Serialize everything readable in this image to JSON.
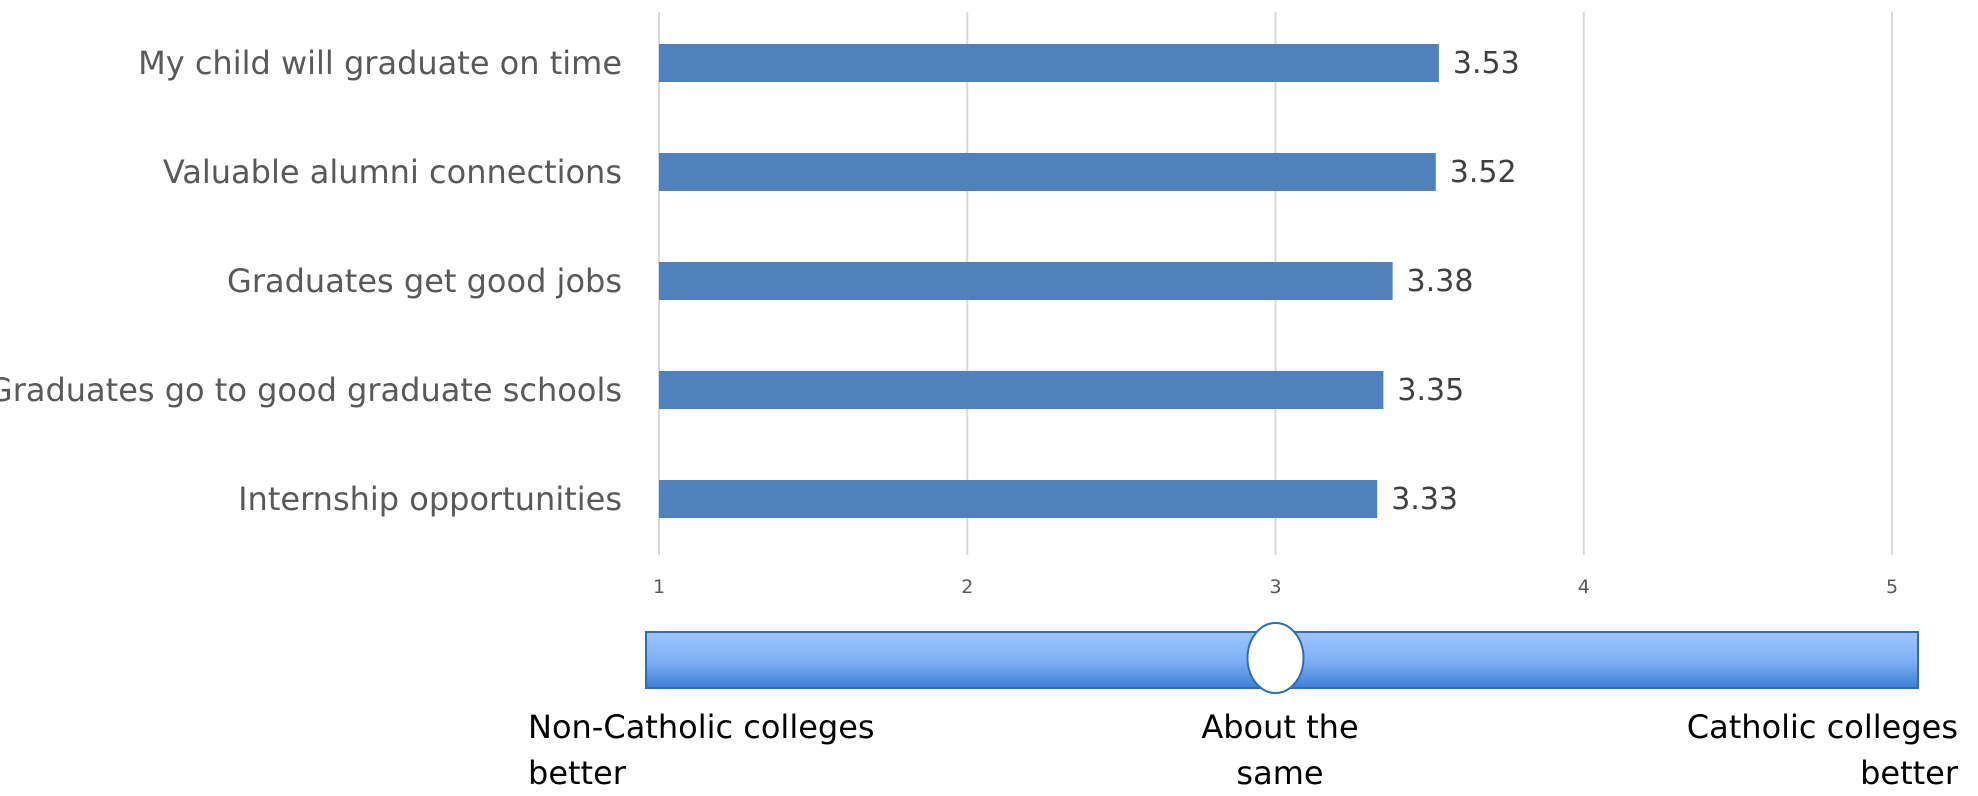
{
  "chart_data": {
    "type": "bar",
    "orientation": "horizontal",
    "categories": [
      "My child will graduate on time",
      "Valuable alumni connections",
      "Graduates get good jobs",
      "Graduates go to good graduate schools",
      "Internship opportunities"
    ],
    "values": [
      3.53,
      3.52,
      3.38,
      3.35,
      3.33
    ],
    "value_labels": [
      "3.53",
      "3.52",
      "3.38",
      "3.35",
      "3.33"
    ],
    "x_ticks": [
      "1",
      "2",
      "3",
      "4",
      "5"
    ],
    "xlim": [
      1,
      5
    ],
    "grid": true,
    "bar_color": "#4f81bd",
    "gridline_color": "#d9d9d9",
    "title": "",
    "xlabel": "",
    "ylabel": ""
  },
  "scale": {
    "left_caption": "Non-Catholic colleges better",
    "middle_caption": "About the same",
    "right_caption": "Catholic colleges better",
    "marker_value": 3,
    "bar_color_top": "#9ec5ff",
    "bar_color_bottom": "#3f7fd6",
    "border_color": "#2e6db4"
  }
}
